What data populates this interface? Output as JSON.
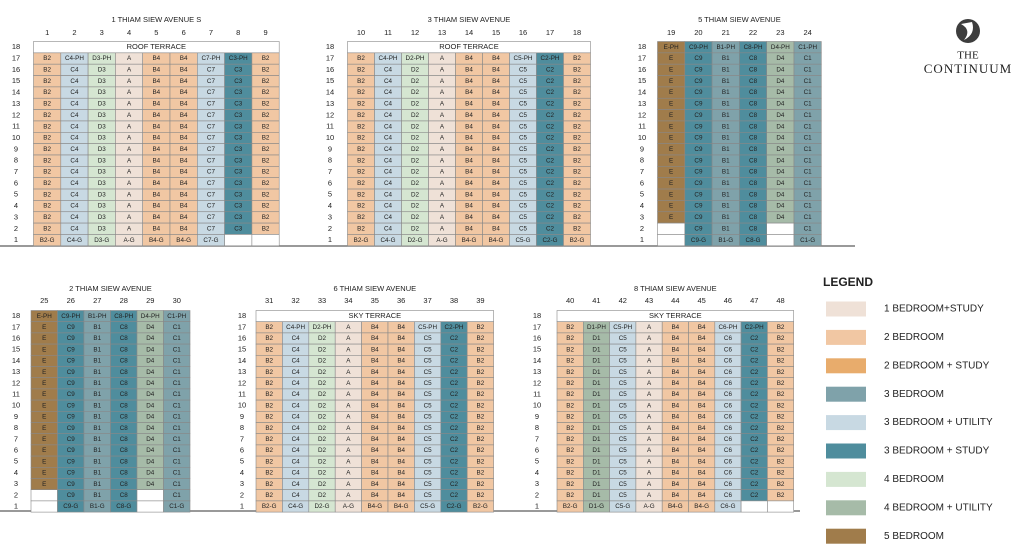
{
  "logo": {
    "line1": "THE",
    "line2": "CONTINUUM"
  },
  "blocks": [
    {
      "title": "1 THIAM SIEW AVENUE S",
      "stacks": [
        "1",
        "2",
        "3",
        "4",
        "5",
        "6",
        "7",
        "8",
        "9"
      ],
      "floors": [
        "18",
        "17",
        "16",
        "15",
        "14",
        "13",
        "12",
        "11",
        "10",
        "9",
        "8",
        "7",
        "6",
        "5",
        "4",
        "3",
        "2",
        "1"
      ],
      "rows": [
        [
          "ROOF TERRACE"
        ],
        [
          "B2",
          "C4-PH",
          "D3-PH",
          "A",
          "B4",
          "B4",
          "C7-PH",
          "C3-PH",
          "B2"
        ],
        [
          "B2",
          "C4",
          "D3",
          "A",
          "B4",
          "B4",
          "C7",
          "C3",
          "B2"
        ],
        [
          "B2",
          "C4",
          "D3",
          "A",
          "B4",
          "B4",
          "C7",
          "C3",
          "B2"
        ],
        [
          "B2",
          "C4",
          "D3",
          "A",
          "B4",
          "B4",
          "C7",
          "C3",
          "B2"
        ],
        [
          "B2",
          "C4",
          "D3",
          "A",
          "B4",
          "B4",
          "C7",
          "C3",
          "B2"
        ],
        [
          "B2",
          "C4",
          "D3",
          "A",
          "B4",
          "B4",
          "C7",
          "C3",
          "B2"
        ],
        [
          "B2",
          "C4",
          "D3",
          "A",
          "B4",
          "B4",
          "C7",
          "C3",
          "B2"
        ],
        [
          "B2",
          "C4",
          "D3",
          "A",
          "B4",
          "B4",
          "C7",
          "C3",
          "B2"
        ],
        [
          "B2",
          "C4",
          "D3",
          "A",
          "B4",
          "B4",
          "C7",
          "C3",
          "B2"
        ],
        [
          "B2",
          "C4",
          "D3",
          "A",
          "B4",
          "B4",
          "C7",
          "C3",
          "B2"
        ],
        [
          "B2",
          "C4",
          "D3",
          "A",
          "B4",
          "B4",
          "C7",
          "C3",
          "B2"
        ],
        [
          "B2",
          "C4",
          "D3",
          "A",
          "B4",
          "B4",
          "C7",
          "C3",
          "B2"
        ],
        [
          "B2",
          "C4",
          "D3",
          "A",
          "B4",
          "B4",
          "C7",
          "C3",
          "B2"
        ],
        [
          "B2",
          "C4",
          "D3",
          "A",
          "B4",
          "B4",
          "C7",
          "C3",
          "B2"
        ],
        [
          "B2",
          "C4",
          "D3",
          "A",
          "B4",
          "B4",
          "C7",
          "C3",
          "B2"
        ],
        [
          "B2",
          "C4",
          "D3",
          "A",
          "B4",
          "B4",
          "C7",
          "C3",
          "B2"
        ],
        [
          "B2-G",
          "C4-G",
          "D3-G",
          "A-G",
          "B4-G",
          "B4-G",
          "C7-G",
          null,
          null
        ]
      ]
    },
    {
      "title": "3 THIAM SIEW AVENUE",
      "stacks": [
        "10",
        "11",
        "12",
        "13",
        "14",
        "15",
        "16",
        "17",
        "18"
      ],
      "floors": [
        "18",
        "17",
        "16",
        "15",
        "14",
        "13",
        "12",
        "11",
        "10",
        "9",
        "8",
        "7",
        "6",
        "5",
        "4",
        "3",
        "2",
        "1"
      ],
      "rows": [
        [
          "ROOF TERRACE"
        ],
        [
          "B2",
          "C4-PH",
          "D2-PH",
          "A",
          "B4",
          "B4",
          "C5-PH",
          "C2-PH",
          "B2"
        ],
        [
          "B2",
          "C4",
          "D2",
          "A",
          "B4",
          "B4",
          "C5",
          "C2",
          "B2"
        ],
        [
          "B2",
          "C4",
          "D2",
          "A",
          "B4",
          "B4",
          "C5",
          "C2",
          "B2"
        ],
        [
          "B2",
          "C4",
          "D2",
          "A",
          "B4",
          "B4",
          "C5",
          "C2",
          "B2"
        ],
        [
          "B2",
          "C4",
          "D2",
          "A",
          "B4",
          "B4",
          "C5",
          "C2",
          "B2"
        ],
        [
          "B2",
          "C4",
          "D2",
          "A",
          "B4",
          "B4",
          "C5",
          "C2",
          "B2"
        ],
        [
          "B2",
          "C4",
          "D2",
          "A",
          "B4",
          "B4",
          "C5",
          "C2",
          "B2"
        ],
        [
          "B2",
          "C4",
          "D2",
          "A",
          "B4",
          "B4",
          "C5",
          "C2",
          "B2"
        ],
        [
          "B2",
          "C4",
          "D2",
          "A",
          "B4",
          "B4",
          "C5",
          "C2",
          "B2"
        ],
        [
          "B2",
          "C4",
          "D2",
          "A",
          "B4",
          "B4",
          "C5",
          "C2",
          "B2"
        ],
        [
          "B2",
          "C4",
          "D2",
          "A",
          "B4",
          "B4",
          "C5",
          "C2",
          "B2"
        ],
        [
          "B2",
          "C4",
          "D2",
          "A",
          "B4",
          "B4",
          "C5",
          "C2",
          "B2"
        ],
        [
          "B2",
          "C4",
          "D2",
          "A",
          "B4",
          "B4",
          "C5",
          "C2",
          "B2"
        ],
        [
          "B2",
          "C4",
          "D2",
          "A",
          "B4",
          "B4",
          "C5",
          "C2",
          "B2"
        ],
        [
          "B2",
          "C4",
          "D2",
          "A",
          "B4",
          "B4",
          "C5",
          "C2",
          "B2"
        ],
        [
          "B2",
          "C4",
          "D2",
          "A",
          "B4",
          "B4",
          "C5",
          "C2",
          "B2"
        ],
        [
          "B2-G",
          "C4-G",
          "D2-G",
          "A-G",
          "B4-G",
          "B4-G",
          "C5-G",
          "C2-G",
          "B2-G"
        ]
      ]
    },
    {
      "title": "5 THIAM SIEW AVENUE",
      "stacks": [
        "19",
        "20",
        "21",
        "22",
        "23",
        "24"
      ],
      "floors": [
        "18",
        "17",
        "16",
        "15",
        "14",
        "13",
        "12",
        "11",
        "10",
        "9",
        "8",
        "7",
        "6",
        "5",
        "4",
        "3",
        "2",
        "1"
      ],
      "rows": [
        [
          "E-PH",
          "C9-PH",
          "B1-PH",
          "C8-PH",
          "D4-PH",
          "C1-PH"
        ],
        [
          "E",
          "C9",
          "B1",
          "C8",
          "D4",
          "C1"
        ],
        [
          "E",
          "C9",
          "B1",
          "C8",
          "D4",
          "C1"
        ],
        [
          "E",
          "C9",
          "B1",
          "C8",
          "D4",
          "C1"
        ],
        [
          "E",
          "C9",
          "B1",
          "C8",
          "D4",
          "C1"
        ],
        [
          "E",
          "C9",
          "B1",
          "C8",
          "D4",
          "C1"
        ],
        [
          "E",
          "C9",
          "B1",
          "C8",
          "D4",
          "C1"
        ],
        [
          "E",
          "C9",
          "B1",
          "C8",
          "D4",
          "C1"
        ],
        [
          "E",
          "C9",
          "B1",
          "C8",
          "D4",
          "C1"
        ],
        [
          "E",
          "C9",
          "B1",
          "C8",
          "D4",
          "C1"
        ],
        [
          "E",
          "C9",
          "B1",
          "C8",
          "D4",
          "C1"
        ],
        [
          "E",
          "C9",
          "B1",
          "C8",
          "D4",
          "C1"
        ],
        [
          "E",
          "C9",
          "B1",
          "C8",
          "D4",
          "C1"
        ],
        [
          "E",
          "C9",
          "B1",
          "C8",
          "D4",
          "C1"
        ],
        [
          "E",
          "C9",
          "B1",
          "C8",
          "D4",
          "C1"
        ],
        [
          "E",
          "C9",
          "B1",
          "C8",
          "D4",
          "C1"
        ],
        [
          null,
          "C9",
          "B1",
          "C8",
          null,
          "C1"
        ],
        [
          null,
          "C9-G",
          "B1-G",
          "C8-G",
          null,
          "C1-G"
        ]
      ]
    },
    {
      "title": "2 THIAM SIEW AVENUE",
      "stacks": [
        "25",
        "26",
        "27",
        "28",
        "29",
        "30"
      ],
      "floors": [
        "18",
        "17",
        "16",
        "15",
        "14",
        "13",
        "12",
        "11",
        "10",
        "9",
        "8",
        "7",
        "6",
        "5",
        "4",
        "3",
        "2",
        "1"
      ],
      "rows": [
        [
          "E-PH",
          "C9-PH",
          "B1-PH",
          "C8-PH",
          "D4-PH",
          "C1-PH"
        ],
        [
          "E",
          "C9",
          "B1",
          "C8",
          "D4",
          "C1"
        ],
        [
          "E",
          "C9",
          "B1",
          "C8",
          "D4",
          "C1"
        ],
        [
          "E",
          "C9",
          "B1",
          "C8",
          "D4",
          "C1"
        ],
        [
          "E",
          "C9",
          "B1",
          "C8",
          "D4",
          "C1"
        ],
        [
          "E",
          "C9",
          "B1",
          "C8",
          "D4",
          "C1"
        ],
        [
          "E",
          "C9",
          "B1",
          "C8",
          "D4",
          "C1"
        ],
        [
          "E",
          "C9",
          "B1",
          "C8",
          "D4",
          "C1"
        ],
        [
          "E",
          "C9",
          "B1",
          "C8",
          "D4",
          "C1"
        ],
        [
          "E",
          "C9",
          "B1",
          "C8",
          "D4",
          "C1"
        ],
        [
          "E",
          "C9",
          "B1",
          "C8",
          "D4",
          "C1"
        ],
        [
          "E",
          "C9",
          "B1",
          "C8",
          "D4",
          "C1"
        ],
        [
          "E",
          "C9",
          "B1",
          "C8",
          "D4",
          "C1"
        ],
        [
          "E",
          "C9",
          "B1",
          "C8",
          "D4",
          "C1"
        ],
        [
          "E",
          "C9",
          "B1",
          "C8",
          "D4",
          "C1"
        ],
        [
          "E",
          "C9",
          "B1",
          "C8",
          "D4",
          "C1"
        ],
        [
          null,
          "C9",
          "B1",
          "C8",
          null,
          "C1"
        ],
        [
          null,
          "C9-G",
          "B1-G",
          "C8-G",
          null,
          "C1-G"
        ]
      ]
    },
    {
      "title": "6 THIAM SIEW AVENUE",
      "stacks": [
        "31",
        "32",
        "33",
        "34",
        "35",
        "36",
        "37",
        "38",
        "39"
      ],
      "floors": [
        "18",
        "17",
        "16",
        "15",
        "14",
        "13",
        "12",
        "11",
        "10",
        "9",
        "8",
        "7",
        "6",
        "5",
        "4",
        "3",
        "2",
        "1"
      ],
      "rows": [
        [
          "SKY TERRACE"
        ],
        [
          "B2",
          "C4-PH",
          "D2-PH",
          "A",
          "B4",
          "B4",
          "C5-PH",
          "C2-PH",
          "B2"
        ],
        [
          "B2",
          "C4",
          "D2",
          "A",
          "B4",
          "B4",
          "C5",
          "C2",
          "B2"
        ],
        [
          "B2",
          "C4",
          "D2",
          "A",
          "B4",
          "B4",
          "C5",
          "C2",
          "B2"
        ],
        [
          "B2",
          "C4",
          "D2",
          "A",
          "B4",
          "B4",
          "C5",
          "C2",
          "B2"
        ],
        [
          "B2",
          "C4",
          "D2",
          "A",
          "B4",
          "B4",
          "C5",
          "C2",
          "B2"
        ],
        [
          "B2",
          "C4",
          "D2",
          "A",
          "B4",
          "B4",
          "C5",
          "C2",
          "B2"
        ],
        [
          "B2",
          "C4",
          "D2",
          "A",
          "B4",
          "B4",
          "C5",
          "C2",
          "B2"
        ],
        [
          "B2",
          "C4",
          "D2",
          "A",
          "B4",
          "B4",
          "C5",
          "C2",
          "B2"
        ],
        [
          "B2",
          "C4",
          "D2",
          "A",
          "B4",
          "B4",
          "C5",
          "C2",
          "B2"
        ],
        [
          "B2",
          "C4",
          "D2",
          "A",
          "B4",
          "B4",
          "C5",
          "C2",
          "B2"
        ],
        [
          "B2",
          "C4",
          "D2",
          "A",
          "B4",
          "B4",
          "C5",
          "C2",
          "B2"
        ],
        [
          "B2",
          "C4",
          "D2",
          "A",
          "B4",
          "B4",
          "C5",
          "C2",
          "B2"
        ],
        [
          "B2",
          "C4",
          "D2",
          "A",
          "B4",
          "B4",
          "C5",
          "C2",
          "B2"
        ],
        [
          "B2",
          "C4",
          "D2",
          "A",
          "B4",
          "B4",
          "C5",
          "C2",
          "B2"
        ],
        [
          "B2",
          "C4",
          "D2",
          "A",
          "B4",
          "B4",
          "C5",
          "C2",
          "B2"
        ],
        [
          "B2",
          "C4",
          "D2",
          "A",
          "B4",
          "B4",
          "C5",
          "C2",
          "B2"
        ],
        [
          "B2-G",
          "C4-G",
          "D2-G",
          "A-G",
          "B4-G",
          "B4-G",
          "C5-G",
          "C2-G",
          "B2-G"
        ]
      ]
    },
    {
      "title": "8 THIAM SIEW AVENUE",
      "stacks": [
        "40",
        "41",
        "42",
        "43",
        "44",
        "45",
        "46",
        "47",
        "48"
      ],
      "floors": [
        "18",
        "17",
        "16",
        "15",
        "14",
        "13",
        "12",
        "11",
        "10",
        "9",
        "8",
        "7",
        "6",
        "5",
        "4",
        "3",
        "2",
        "1"
      ],
      "rows": [
        [
          "SKY TERRACE"
        ],
        [
          "B2",
          "D1-PH",
          "C5-PH",
          "A",
          "B4",
          "B4",
          "C6-PH",
          "C2-PH",
          "B2"
        ],
        [
          "B2",
          "D1",
          "C5",
          "A",
          "B4",
          "B4",
          "C6",
          "C2",
          "B2"
        ],
        [
          "B2",
          "D1",
          "C5",
          "A",
          "B4",
          "B4",
          "C6",
          "C2",
          "B2"
        ],
        [
          "B2",
          "D1",
          "C5",
          "A",
          "B4",
          "B4",
          "C6",
          "C2",
          "B2"
        ],
        [
          "B2",
          "D1",
          "C5",
          "A",
          "B4",
          "B4",
          "C6",
          "C2",
          "B2"
        ],
        [
          "B2",
          "D1",
          "C5",
          "A",
          "B4",
          "B4",
          "C6",
          "C2",
          "B2"
        ],
        [
          "B2",
          "D1",
          "C5",
          "A",
          "B4",
          "B4",
          "C6",
          "C2",
          "B2"
        ],
        [
          "B2",
          "D1",
          "C5",
          "A",
          "B4",
          "B4",
          "C6",
          "C2",
          "B2"
        ],
        [
          "B2",
          "D1",
          "C5",
          "A",
          "B4",
          "B4",
          "C6",
          "C2",
          "B2"
        ],
        [
          "B2",
          "D1",
          "C5",
          "A",
          "B4",
          "B4",
          "C6",
          "C2",
          "B2"
        ],
        [
          "B2",
          "D1",
          "C5",
          "A",
          "B4",
          "B4",
          "C6",
          "C2",
          "B2"
        ],
        [
          "B2",
          "D1",
          "C5",
          "A",
          "B4",
          "B4",
          "C6",
          "C2",
          "B2"
        ],
        [
          "B2",
          "D1",
          "C5",
          "A",
          "B4",
          "B4",
          "C6",
          "C2",
          "B2"
        ],
        [
          "B2",
          "D1",
          "C5",
          "A",
          "B4",
          "B4",
          "C6",
          "C2",
          "B2"
        ],
        [
          "B2",
          "D1",
          "C5",
          "A",
          "B4",
          "B4",
          "C6",
          "C2",
          "B2"
        ],
        [
          "B2",
          "D1",
          "C5",
          "A",
          "B4",
          "B4",
          "C6",
          "C2",
          "B2"
        ],
        [
          "B2-G",
          "D1-G",
          "C5-G",
          "A-G",
          "B4-G",
          "B4-G",
          "C6-G",
          null,
          null
        ]
      ]
    }
  ],
  "legend": {
    "title": "LEGEND",
    "items": [
      {
        "label": "1 BEDROOM+STUDY",
        "color": "#efe1d7"
      },
      {
        "label": "2 BEDROOM",
        "color": "#f1c7a3"
      },
      {
        "label": "2 BEDROOM + STUDY",
        "color": "#e8ac6c"
      },
      {
        "label": "3 BEDROOM",
        "color": "#7fa2aa"
      },
      {
        "label": "3 BEDROOM + UTILITY",
        "color": "#c8d9e3"
      },
      {
        "label": "3 BEDROOM + STUDY",
        "color": "#4f8d9d"
      },
      {
        "label": "4 BEDROOM",
        "color": "#d5e6d1"
      },
      {
        "label": "4 BEDROOM + UTILITY",
        "color": "#a6bba8"
      },
      {
        "label": "5 BEDROOM",
        "color": "#a07c4b"
      }
    ]
  }
}
